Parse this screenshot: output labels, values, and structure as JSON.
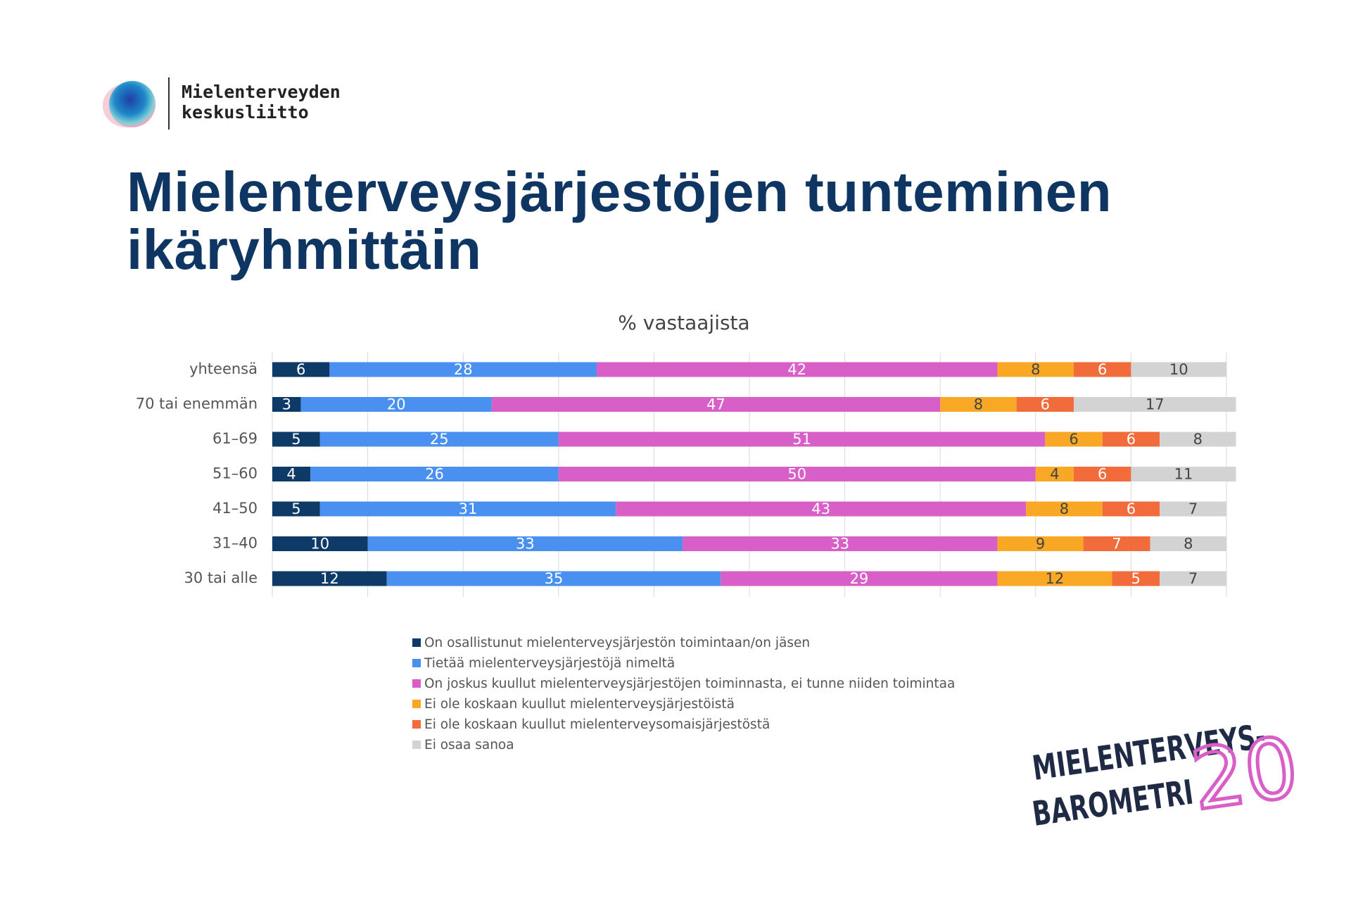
{
  "branding": {
    "org_name": [
      "Mielenterveyden",
      "keskusliitto"
    ],
    "barometer": [
      "MIELENTERVEYS-",
      "BAROMETRI"
    ],
    "barometer_number": "20"
  },
  "chart_data": {
    "type": "bar",
    "orientation": "horizontal",
    "stacked": true,
    "title": "Mielenterveysjärjestöjen tunteminen ikäryhmittäin",
    "subtitle": "% vastaajista",
    "categories": [
      "yhteensä",
      "70 tai enemmän",
      "61–69",
      "51–60",
      "41–50",
      "31–40",
      "30 tai alle"
    ],
    "series": [
      {
        "name": "On osallistunut mielenterveysjärjestön toimintaan/on jäsen",
        "color": "#0d3a66",
        "values": [
          6,
          3,
          5,
          4,
          5,
          10,
          12
        ]
      },
      {
        "name": "Tietää mielenterveysjärjestöjä nimeltä",
        "color": "#4a90f0",
        "values": [
          28,
          20,
          25,
          26,
          31,
          33,
          35
        ]
      },
      {
        "name": "On joskus kuullut mielenterveysjärjestöjen toiminnasta, ei tunne niiden toimintaa",
        "color": "#d95fc8",
        "values": [
          42,
          47,
          51,
          50,
          43,
          33,
          29
        ]
      },
      {
        "name": "Ei ole koskaan kuullut mielenterveysjärjestöistä",
        "color": "#f9a825",
        "values": [
          8,
          8,
          6,
          4,
          8,
          9,
          12
        ]
      },
      {
        "name": "Ei ole koskaan kuullut mielenterveysomaisjärjestöstä",
        "color": "#f26b3a",
        "values": [
          6,
          6,
          6,
          6,
          6,
          7,
          5
        ]
      },
      {
        "name": "Ei osaa sanoa",
        "color": "#d3d3d3",
        "values": [
          10,
          17,
          8,
          11,
          7,
          8,
          7
        ]
      }
    ],
    "xlim": [
      0,
      100
    ],
    "xticks": [
      0,
      10,
      20,
      30,
      40,
      50,
      60,
      70,
      80,
      90,
      100
    ],
    "grid": true,
    "legend": "bottom"
  }
}
